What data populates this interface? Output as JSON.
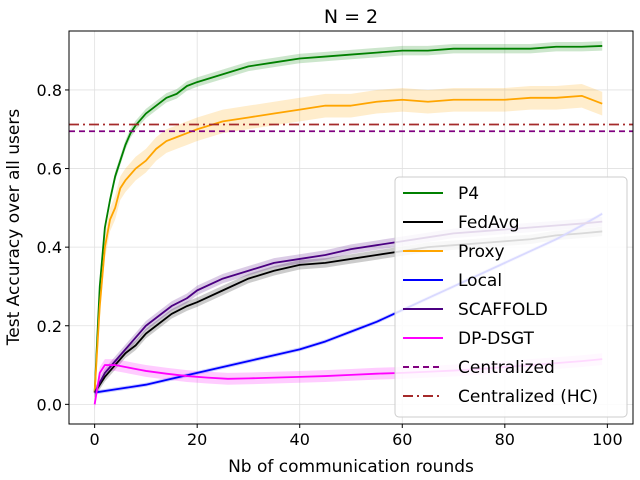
{
  "chart_data": {
    "type": "line",
    "title": "N = 2",
    "xlabel": "Nb of communication rounds",
    "ylabel": "Test Accuracy over all users",
    "xlim": [
      -5,
      105
    ],
    "ylim": [
      -0.05,
      0.95
    ],
    "xticks": [
      0,
      20,
      40,
      60,
      80,
      100
    ],
    "yticks": [
      0.0,
      0.2,
      0.4,
      0.6,
      0.8
    ],
    "grid": true,
    "legend_position": "lower-right",
    "series": [
      {
        "name": "P4",
        "color": "#008000",
        "band": 0.012,
        "x": [
          0,
          1,
          2,
          3,
          4,
          5,
          6,
          7,
          8,
          10,
          12,
          14,
          16,
          18,
          20,
          25,
          30,
          35,
          40,
          45,
          50,
          55,
          60,
          65,
          70,
          75,
          80,
          85,
          90,
          95,
          99
        ],
        "y": [
          0.03,
          0.3,
          0.45,
          0.52,
          0.58,
          0.62,
          0.66,
          0.69,
          0.71,
          0.74,
          0.76,
          0.78,
          0.79,
          0.81,
          0.82,
          0.84,
          0.86,
          0.87,
          0.88,
          0.885,
          0.89,
          0.895,
          0.9,
          0.9,
          0.905,
          0.905,
          0.905,
          0.905,
          0.91,
          0.91,
          0.912
        ]
      },
      {
        "name": "FedAvg",
        "color": "#000000",
        "band": 0.012,
        "x": [
          0,
          2,
          4,
          6,
          8,
          10,
          12,
          15,
          18,
          20,
          25,
          30,
          35,
          40,
          45,
          50,
          55,
          60,
          65,
          70,
          75,
          80,
          85,
          90,
          95,
          99
        ],
        "y": [
          0.03,
          0.07,
          0.1,
          0.13,
          0.15,
          0.18,
          0.2,
          0.23,
          0.25,
          0.26,
          0.29,
          0.32,
          0.34,
          0.355,
          0.36,
          0.37,
          0.38,
          0.39,
          0.4,
          0.405,
          0.41,
          0.415,
          0.42,
          0.43,
          0.435,
          0.44
        ]
      },
      {
        "name": "Proxy",
        "color": "#FFA500",
        "band": 0.03,
        "x": [
          0,
          1,
          2,
          3,
          4,
          5,
          6,
          8,
          10,
          12,
          14,
          16,
          18,
          20,
          25,
          30,
          35,
          40,
          45,
          50,
          55,
          60,
          65,
          70,
          75,
          80,
          85,
          90,
          95,
          99
        ],
        "y": [
          0.03,
          0.25,
          0.4,
          0.47,
          0.5,
          0.55,
          0.57,
          0.6,
          0.62,
          0.65,
          0.67,
          0.68,
          0.69,
          0.7,
          0.72,
          0.73,
          0.74,
          0.75,
          0.76,
          0.76,
          0.77,
          0.775,
          0.77,
          0.775,
          0.775,
          0.775,
          0.78,
          0.78,
          0.785,
          0.765
        ]
      },
      {
        "name": "Local",
        "color": "#0000FF",
        "band": 0.005,
        "x": [
          0,
          5,
          10,
          15,
          20,
          25,
          30,
          35,
          40,
          45,
          50,
          55,
          60,
          65,
          70,
          75,
          80,
          85,
          90,
          95,
          99
        ],
        "y": [
          0.03,
          0.04,
          0.05,
          0.065,
          0.08,
          0.095,
          0.11,
          0.125,
          0.14,
          0.16,
          0.185,
          0.21,
          0.24,
          0.27,
          0.3,
          0.33,
          0.36,
          0.39,
          0.42,
          0.455,
          0.485
        ]
      },
      {
        "name": "SCAFFOLD",
        "color": "#4B0082",
        "band": 0.012,
        "x": [
          0,
          2,
          4,
          6,
          8,
          10,
          12,
          15,
          18,
          20,
          25,
          30,
          35,
          40,
          45,
          50,
          55,
          60,
          65,
          70,
          75,
          80,
          85,
          90,
          95,
          99
        ],
        "y": [
          0.03,
          0.08,
          0.11,
          0.14,
          0.17,
          0.2,
          0.22,
          0.25,
          0.27,
          0.29,
          0.32,
          0.34,
          0.36,
          0.37,
          0.38,
          0.395,
          0.405,
          0.415,
          0.425,
          0.435,
          0.44,
          0.445,
          0.45,
          0.455,
          0.46,
          0.465
        ]
      },
      {
        "name": "DP-DSGT",
        "color": "#FF00FF",
        "band": 0.015,
        "x": [
          0,
          1,
          2,
          3,
          4,
          6,
          8,
          10,
          14,
          18,
          22,
          26,
          30,
          35,
          40,
          45,
          50,
          55,
          60,
          65,
          70,
          75,
          80,
          85,
          90,
          95,
          99
        ],
        "y": [
          0.0,
          0.08,
          0.1,
          0.1,
          0.1,
          0.095,
          0.09,
          0.085,
          0.078,
          0.072,
          0.068,
          0.065,
          0.066,
          0.068,
          0.07,
          0.072,
          0.075,
          0.078,
          0.08,
          0.083,
          0.086,
          0.09,
          0.095,
          0.1,
          0.105,
          0.11,
          0.115
        ]
      },
      {
        "name": "Centralized",
        "color": "#800080",
        "dash": "6,4",
        "hline": 0.695
      },
      {
        "name": "Centralized (HC)",
        "color": "#A52A2A",
        "dash": "10,4,2,4",
        "hline": 0.712
      }
    ]
  }
}
